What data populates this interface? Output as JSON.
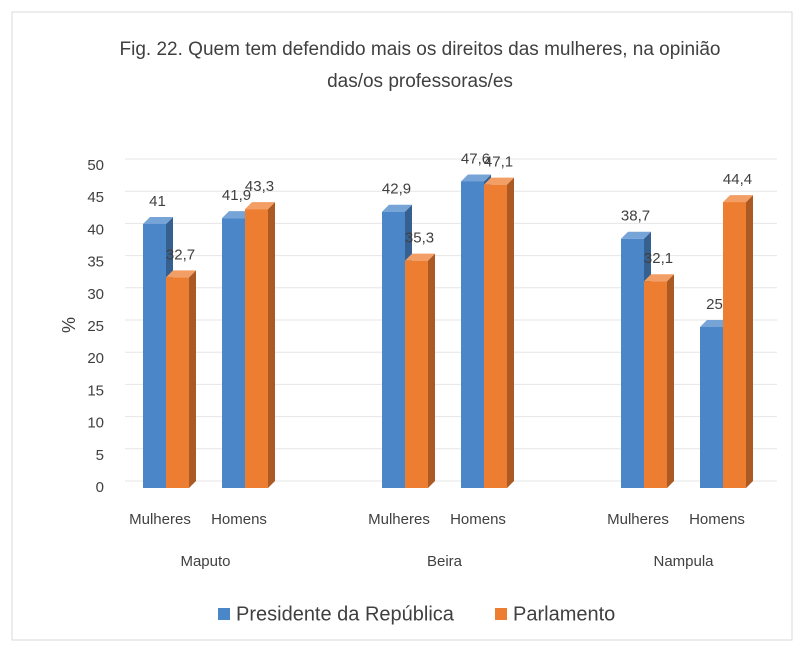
{
  "chart_data": {
    "type": "bar",
    "title": "Fig. 22. Quem tem defendido mais os direitos das mulheres, na opinião das/os professoras/es",
    "ylabel": "%",
    "categories": [
      "Mulheres",
      "Homens",
      "Mulheres",
      "Homens",
      "Mulheres",
      "Homens"
    ],
    "groups": [
      "Maputo",
      "Beira",
      "Nampula"
    ],
    "series": [
      {
        "name": "Presidente da República",
        "color": "#4a86c8",
        "values": [
          41,
          41.9,
          42.9,
          47.6,
          38.7,
          25
        ],
        "value_labels": [
          "41",
          "41,9",
          "42,9",
          "47,6",
          "38,7",
          "25"
        ]
      },
      {
        "name": "Parlamento",
        "color": "#ed7d31",
        "values": [
          32.7,
          43.3,
          35.3,
          47.1,
          32.1,
          44.4
        ],
        "value_labels": [
          "32,7",
          "43,3",
          "35,3",
          "47,1",
          "32,1",
          "44,4"
        ]
      }
    ],
    "ylim": [
      0,
      50
    ],
    "yticks": [
      0,
      5,
      10,
      15,
      20,
      25,
      30,
      35,
      40,
      45,
      50
    ],
    "grid": true,
    "legend": "bottom"
  }
}
